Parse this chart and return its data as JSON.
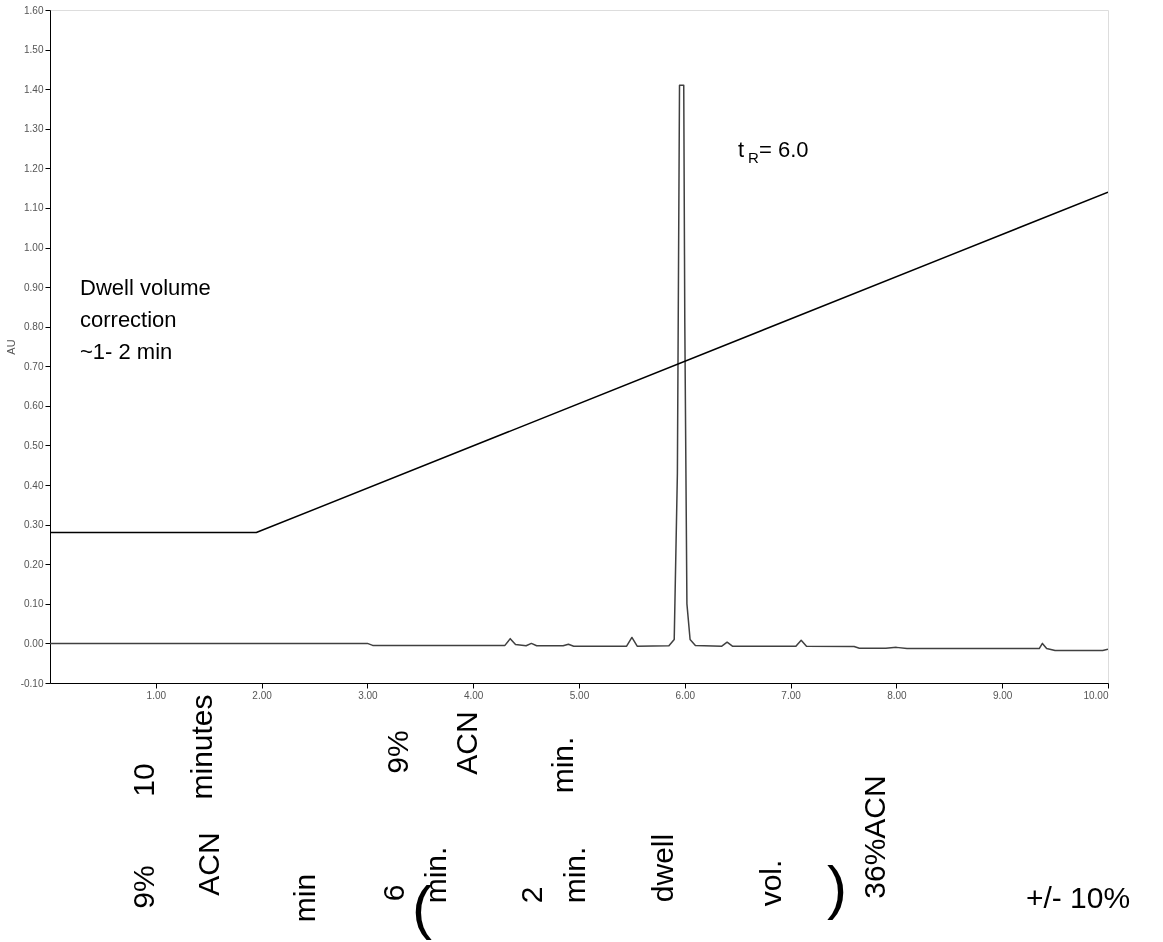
{
  "chart_data": {
    "type": "line",
    "ylabel": "AU",
    "xlim": [
      0,
      10
    ],
    "ylim": [
      -0.1,
      1.6
    ],
    "xticks": [
      {
        "value": 1,
        "label": "1.00"
      },
      {
        "value": 2,
        "label": "2.00"
      },
      {
        "value": 3,
        "label": "3.00"
      },
      {
        "value": 4,
        "label": "4.00"
      },
      {
        "value": 5,
        "label": "5.00"
      },
      {
        "value": 6,
        "label": "6.00"
      },
      {
        "value": 7,
        "label": "7.00"
      },
      {
        "value": 8,
        "label": "8.00"
      },
      {
        "value": 9,
        "label": "9.00"
      },
      {
        "value": 10,
        "label": "10.00"
      }
    ],
    "yticks": [
      {
        "value": -0.1,
        "label": "-0.10"
      },
      {
        "value": 0,
        "label": "0.00"
      },
      {
        "value": 0.1,
        "label": "0.10"
      },
      {
        "value": 0.2,
        "label": "0.20"
      },
      {
        "value": 0.3,
        "label": "0.30"
      },
      {
        "value": 0.4,
        "label": "0.40"
      },
      {
        "value": 0.5,
        "label": "0.50"
      },
      {
        "value": 0.6,
        "label": "0.60"
      },
      {
        "value": 0.7,
        "label": "0.70"
      },
      {
        "value": 0.8,
        "label": "0.80"
      },
      {
        "value": 0.9,
        "label": "0.90"
      },
      {
        "value": 1.0,
        "label": "1.00"
      },
      {
        "value": 1.1,
        "label": "1.10"
      },
      {
        "value": 1.2,
        "label": "1.20"
      },
      {
        "value": 1.3,
        "label": "1.30"
      },
      {
        "value": 1.4,
        "label": "1.40"
      },
      {
        "value": 1.5,
        "label": "1.50"
      },
      {
        "value": 1.6,
        "label": "1.60"
      }
    ],
    "grid": false,
    "marker": "none",
    "line_style": "solid",
    "series": [
      {
        "color": "#404040",
        "x": [
          0,
          3.0,
          3.05,
          4.3,
          4.35,
          4.4,
          4.5,
          4.55,
          4.6,
          4.85,
          4.9,
          4.95,
          5.45,
          5.5,
          5.55,
          5.85,
          5.9,
          5.93,
          5.95,
          5.99,
          6.0,
          6.02,
          6.05,
          6.1,
          6.35,
          6.4,
          6.45,
          7.05,
          7.1,
          7.15,
          7.6,
          7.65,
          7.9,
          8.0,
          8.1,
          9.35,
          9.38,
          9.42,
          9.5,
          9.95,
          10.0
        ],
        "values": [
          0,
          0,
          -0.005,
          -0.005,
          0.012,
          -0.003,
          -0.006,
          0.0,
          -0.006,
          -0.006,
          -0.002,
          -0.007,
          -0.007,
          0.015,
          -0.007,
          -0.006,
          0.01,
          0.43,
          1.41,
          1.41,
          0.81,
          0.1,
          0.01,
          -0.005,
          -0.007,
          0.003,
          -0.007,
          -0.007,
          0.008,
          -0.007,
          -0.008,
          -0.012,
          -0.012,
          -0.01,
          -0.013,
          -0.013,
          0.0,
          -0.013,
          -0.018,
          -0.018,
          -0.015
        ]
      },
      {
        "color": "#000000",
        "x": [
          0,
          1.95,
          10
        ],
        "values": [
          0.28,
          0.28,
          1.14
        ]
      }
    ],
    "annotations": [
      "t$_{R}$= 6.0",
      "Dwell volume correction ~1- 2 min",
      "10",
      "minutes",
      "9%",
      "ACN",
      "min.",
      "9%",
      "ACN",
      "min",
      "6",
      "(",
      "min.",
      "2",
      "min.",
      "dwell",
      "vol.",
      ")",
      "36%ACN",
      "+/- 10%"
    ]
  }
}
